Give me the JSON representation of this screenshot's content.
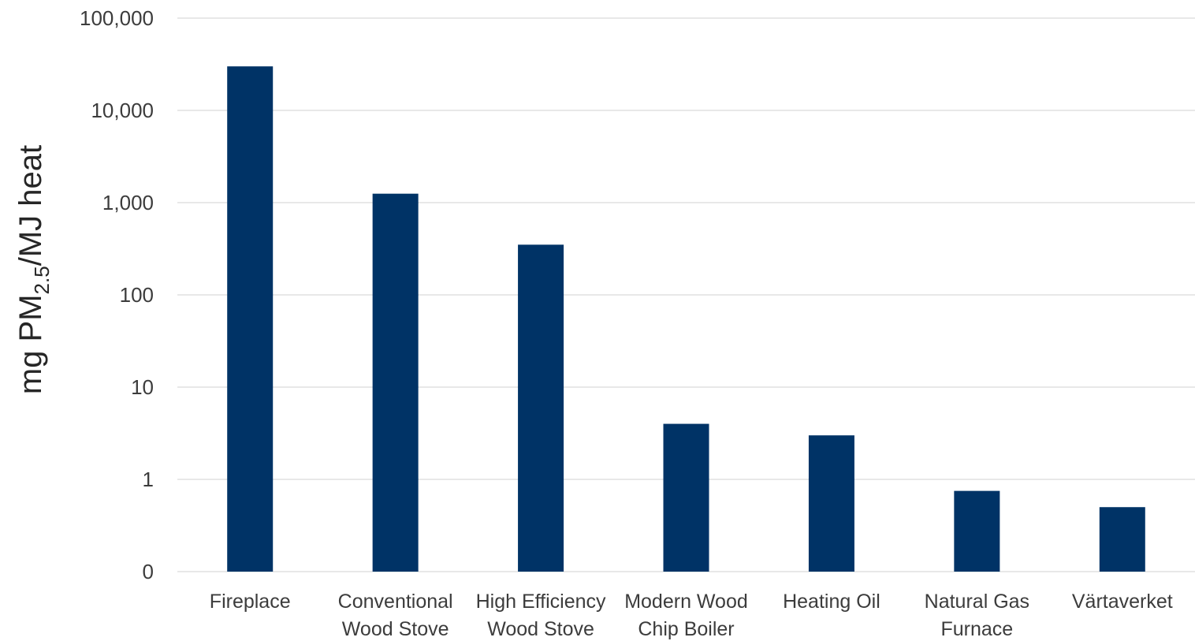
{
  "chart_data": {
    "type": "bar",
    "yscale": "log",
    "categories": [
      [
        "Fireplace"
      ],
      [
        "Conventional",
        "Wood Stove"
      ],
      [
        "High Efficiency",
        "Wood Stove"
      ],
      [
        "Modern Wood",
        "Chip Boiler"
      ],
      [
        "Heating Oil"
      ],
      [
        "Natural Gas",
        "Furnace"
      ],
      [
        "Värtaverket"
      ]
    ],
    "values": [
      30000,
      1250,
      350,
      4,
      3,
      0.75,
      0.5
    ],
    "ylim": [
      0.1,
      100000
    ],
    "yticks": [
      {
        "value": 0.1,
        "label": "0"
      },
      {
        "value": 1,
        "label": "1"
      },
      {
        "value": 10,
        "label": "10"
      },
      {
        "value": 100,
        "label": "100"
      },
      {
        "value": 1000,
        "label": "1,000"
      },
      {
        "value": 10000,
        "label": "10,000"
      },
      {
        "value": 100000,
        "label": "100,000"
      }
    ],
    "ylabel": {
      "prefix": "mg PM",
      "subscript": "2.5",
      "suffix": "/MJ heat"
    },
    "xlabel": "",
    "title": "",
    "grid": true,
    "legend": "none",
    "bar_color": "#003366",
    "grid_color": "#d9d9d9",
    "text_color": "#3c3c3c"
  }
}
